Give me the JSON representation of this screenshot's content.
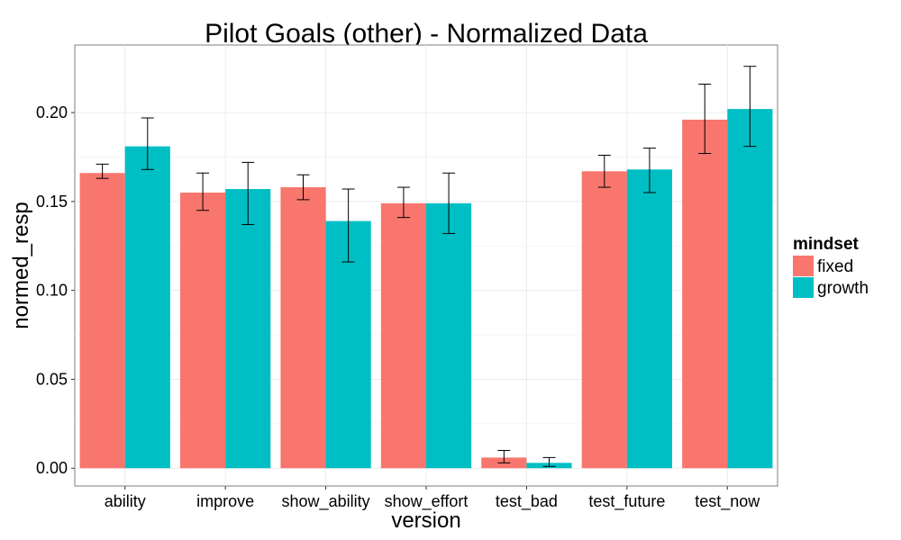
{
  "chart_data": {
    "type": "bar",
    "title": "Pilot Goals (other) - Normalized Data",
    "xlabel": "version",
    "ylabel": "normed_resp",
    "categories": [
      "ability",
      "improve",
      "show_ability",
      "show_effort",
      "test_bad",
      "test_future",
      "test_now"
    ],
    "series": [
      {
        "name": "fixed",
        "color": "#F8766D",
        "values": [
          0.166,
          0.155,
          0.158,
          0.149,
          0.006,
          0.167,
          0.196
        ],
        "err_low": [
          0.163,
          0.145,
          0.151,
          0.141,
          0.003,
          0.158,
          0.177
        ],
        "err_high": [
          0.171,
          0.166,
          0.165,
          0.158,
          0.01,
          0.176,
          0.216
        ]
      },
      {
        "name": "growth",
        "color": "#00BFC4",
        "values": [
          0.181,
          0.157,
          0.139,
          0.149,
          0.003,
          0.168,
          0.202
        ],
        "err_low": [
          0.168,
          0.137,
          0.116,
          0.132,
          0.001,
          0.155,
          0.181
        ],
        "err_high": [
          0.197,
          0.172,
          0.157,
          0.166,
          0.006,
          0.18,
          0.226
        ]
      }
    ],
    "yticks": [
      "0.00",
      "0.05",
      "0.10",
      "0.15",
      "0.20"
    ],
    "ylim": [
      -0.01,
      0.238
    ],
    "grid": true,
    "legend": {
      "title": "mindset",
      "placement": "right"
    }
  }
}
